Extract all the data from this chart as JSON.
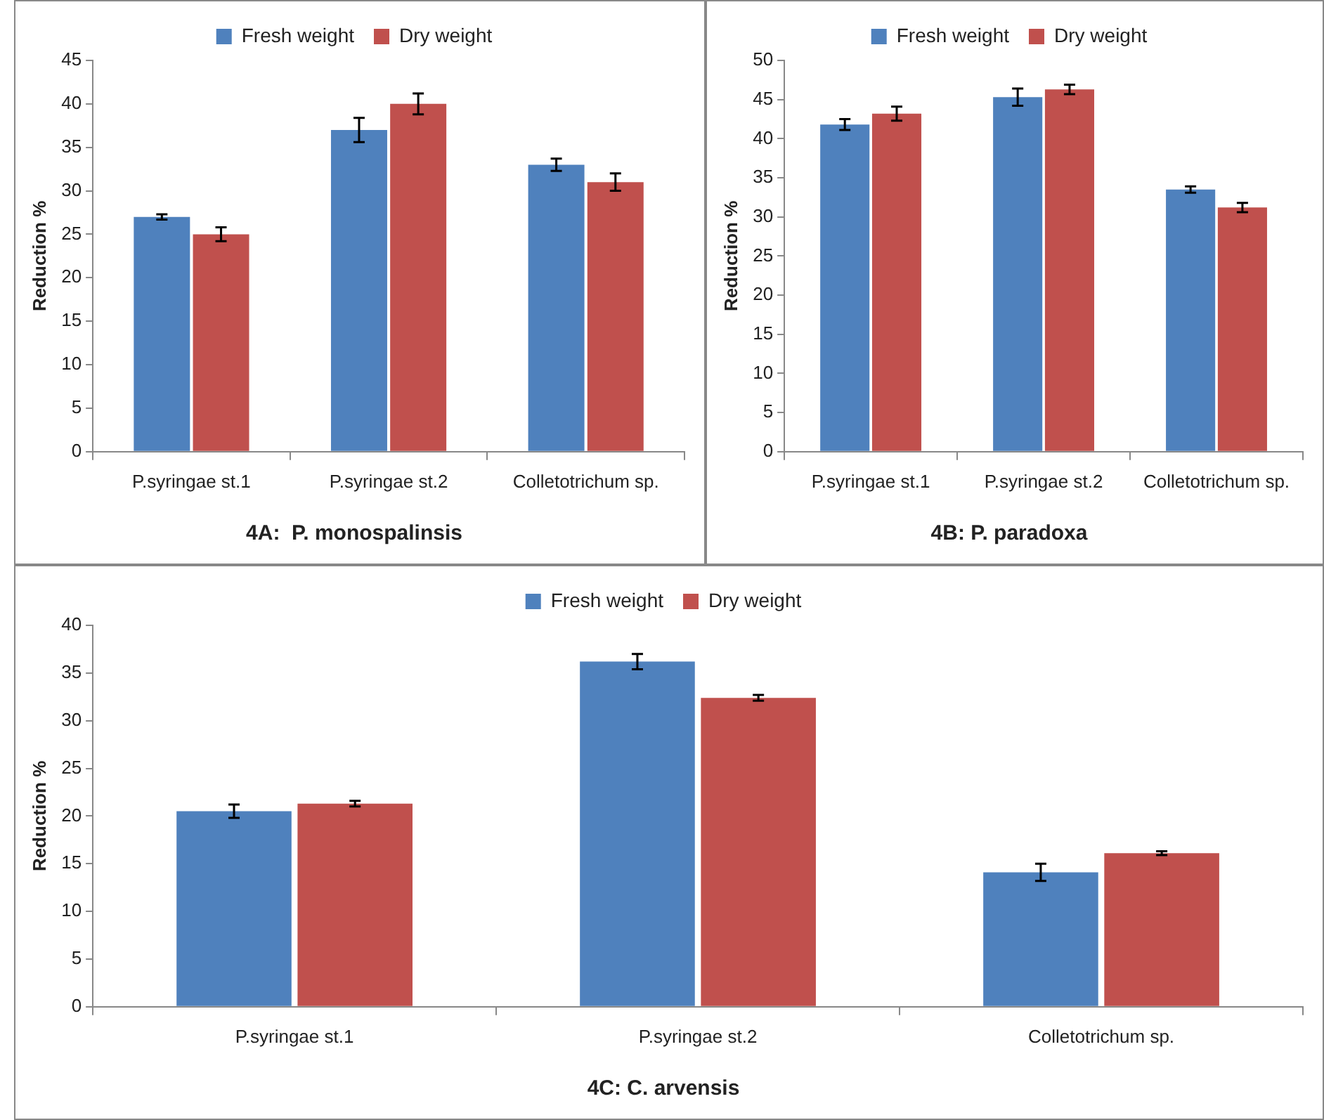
{
  "chart_data": [
    {
      "type": "bar",
      "title": "4A:  P. monospalinsis",
      "ylabel": "Reduction %",
      "categories": [
        "P.syringae st.1",
        "P.syringae st.2",
        "Colletotrichum sp."
      ],
      "series": [
        {
          "name": "Fresh weight",
          "color": "#4f81bd",
          "values": [
            27,
            37,
            33
          ],
          "errors": [
            0.3,
            1.4,
            0.7
          ]
        },
        {
          "name": "Dry weight",
          "color": "#c0504d",
          "values": [
            25,
            40,
            31
          ],
          "errors": [
            0.8,
            1.2,
            1.0
          ]
        }
      ],
      "ylim": [
        0,
        45
      ],
      "yticks": [
        0,
        5,
        10,
        15,
        20,
        25,
        30,
        35,
        40,
        45
      ],
      "grid": false,
      "legend": "top"
    },
    {
      "type": "bar",
      "title": "4B: P. paradoxa",
      "ylabel": "Reduction %",
      "categories": [
        "P.syringae st.1",
        "P.syringae st.2",
        "Colletotrichum sp."
      ],
      "series": [
        {
          "name": "Fresh weight",
          "color": "#4f81bd",
          "values": [
            41.8,
            45.3,
            33.5
          ],
          "errors": [
            0.7,
            1.1,
            0.4
          ]
        },
        {
          "name": "Dry weight",
          "color": "#c0504d",
          "values": [
            43.2,
            46.3,
            31.2
          ],
          "errors": [
            0.9,
            0.6,
            0.6
          ]
        }
      ],
      "ylim": [
        0,
        50
      ],
      "yticks": [
        0,
        5,
        10,
        15,
        20,
        25,
        30,
        35,
        40,
        45,
        50
      ],
      "grid": false,
      "legend": "top"
    },
    {
      "type": "bar",
      "title": "4C: C. arvensis",
      "ylabel": "Reduction %",
      "categories": [
        "P.syringae st.1",
        "P.syringae st.2",
        "Colletotrichum sp."
      ],
      "series": [
        {
          "name": "Fresh weight",
          "color": "#4f81bd",
          "values": [
            20.5,
            36.2,
            14.1
          ],
          "errors": [
            0.7,
            0.8,
            0.9
          ]
        },
        {
          "name": "Dry weight",
          "color": "#c0504d",
          "values": [
            21.3,
            32.4,
            16.1
          ],
          "errors": [
            0.3,
            0.3,
            0.2
          ]
        }
      ],
      "ylim": [
        0,
        40
      ],
      "yticks": [
        0,
        5,
        10,
        15,
        20,
        25,
        30,
        35,
        40
      ],
      "grid": false,
      "legend": "top"
    }
  ]
}
